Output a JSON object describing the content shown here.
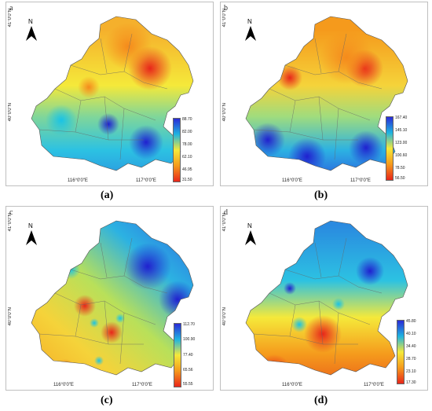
{
  "panels": [
    {
      "letter": "a",
      "lat_top": "41°0'0\"N",
      "lat_mid": "40°0'0\"N",
      "lon_left": "116°0'0\"E",
      "lon_right": "117°0'0\"E",
      "legend": [
        "88.70",
        "82.00",
        "78.00",
        "62.10",
        "46.95",
        "31.50"
      ],
      "caption": "(a)"
    },
    {
      "letter": "b",
      "lat_top": "41°0'0\"N",
      "lat_mid": "40°0'0\"N",
      "lon_left": "116°0'0\"E",
      "lon_right": "117°0'0\"E",
      "legend": [
        "167.40",
        "145.10",
        "123.00",
        "100.60",
        "78.50",
        "56.50"
      ],
      "caption": "(b)"
    },
    {
      "letter": "c",
      "lat_top": "41°0'0\"N",
      "lat_mid": "40°0'0\"N",
      "lon_left": "116°0'0\"E",
      "lon_right": "117°0'0\"E",
      "legend": [
        "112.70",
        "100.90",
        "77.40",
        "65.56",
        "55.55"
      ],
      "caption": "(c)"
    },
    {
      "letter": "d",
      "lat_top": "41°0'0\"N",
      "lat_mid": "40°0'0\"N",
      "lon_left": "116°0'0\"E",
      "lon_right": "117°0'0\"E",
      "legend": [
        "45.80",
        "40.10",
        "34.40",
        "28.70",
        "23.10",
        "17.30"
      ],
      "caption": "(d)"
    }
  ],
  "north_label": "N",
  "colors": {
    "high": "#2b2bd6",
    "mid_high": "#1fb4e0",
    "mid": "#f5e93a",
    "mid_low": "#f59a1c",
    "low": "#e8261a"
  }
}
